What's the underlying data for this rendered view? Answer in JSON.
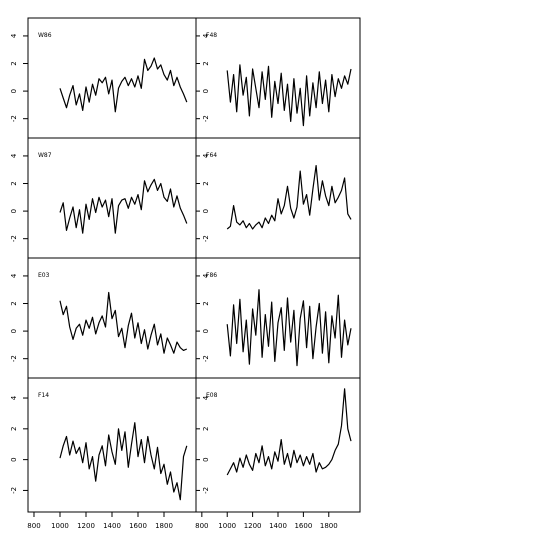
{
  "chart_data": [
    {
      "type": "line",
      "title": "W86",
      "color": "#000000",
      "xlim": [
        754,
        2046
      ],
      "ylim": [
        -3.4,
        5.3
      ],
      "yticks": [
        -2,
        0,
        2,
        4
      ],
      "x": [
        1000,
        1025,
        1050,
        1075,
        1100,
        1125,
        1150,
        1175,
        1200,
        1225,
        1250,
        1275,
        1300,
        1325,
        1350,
        1375,
        1400,
        1425,
        1450,
        1475,
        1500,
        1525,
        1550,
        1575,
        1600,
        1625,
        1650,
        1675,
        1700,
        1725,
        1750,
        1775,
        1800,
        1825,
        1850,
        1875,
        1900,
        1925,
        1950,
        1975
      ],
      "values": [
        0.2,
        -0.5,
        -1.2,
        -0.3,
        0.4,
        -1.0,
        -0.2,
        -1.4,
        0.3,
        -0.8,
        0.5,
        -0.3,
        0.9,
        0.6,
        1.0,
        -0.2,
        0.8,
        -1.5,
        0.2,
        0.7,
        1.0,
        0.4,
        0.9,
        0.3,
        1.1,
        0.2,
        2.3,
        1.5,
        1.8,
        2.4,
        1.6,
        1.9,
        1.2,
        0.8,
        1.5,
        0.4,
        1.0,
        0.3,
        -0.2,
        -0.8
      ]
    },
    {
      "type": "line",
      "title": "F48",
      "color": "#000000",
      "xlim": [
        754,
        2046
      ],
      "ylim": [
        -3.4,
        5.3
      ],
      "yticks": [
        -2,
        0,
        2,
        4
      ],
      "x": [
        1000,
        1025,
        1050,
        1075,
        1100,
        1125,
        1150,
        1175,
        1200,
        1225,
        1250,
        1275,
        1300,
        1325,
        1350,
        1375,
        1400,
        1425,
        1450,
        1475,
        1500,
        1525,
        1550,
        1575,
        1600,
        1625,
        1650,
        1675,
        1700,
        1725,
        1750,
        1775,
        1800,
        1825,
        1850,
        1875,
        1900,
        1925,
        1950,
        1975
      ],
      "values": [
        1.5,
        -0.8,
        1.2,
        -1.5,
        1.9,
        -0.3,
        1.0,
        -1.8,
        1.6,
        0.2,
        -1.2,
        1.4,
        -0.6,
        1.8,
        -1.9,
        0.7,
        -0.9,
        1.3,
        -1.4,
        0.5,
        -2.2,
        0.9,
        -1.6,
        0.2,
        -2.5,
        1.1,
        -1.8,
        0.6,
        -1.2,
        1.4,
        -0.9,
        0.8,
        -1.5,
        1.2,
        -0.4,
        0.9,
        0.2,
        1.1,
        0.5,
        1.6
      ]
    },
    {
      "type": "line",
      "title": "W87",
      "color": "#000000",
      "xlim": [
        754,
        2046
      ],
      "ylim": [
        -3.4,
        5.3
      ],
      "yticks": [
        -2,
        0,
        2,
        4
      ],
      "x": [
        1000,
        1025,
        1050,
        1075,
        1100,
        1125,
        1150,
        1175,
        1200,
        1225,
        1250,
        1275,
        1300,
        1325,
        1350,
        1375,
        1400,
        1425,
        1450,
        1475,
        1500,
        1525,
        1550,
        1575,
        1600,
        1625,
        1650,
        1675,
        1700,
        1725,
        1750,
        1775,
        1800,
        1825,
        1850,
        1875,
        1900,
        1925,
        1950,
        1975
      ],
      "values": [
        -0.1,
        0.6,
        -1.4,
        -0.5,
        0.3,
        -1.2,
        0.1,
        -1.6,
        0.5,
        -0.6,
        0.9,
        -0.1,
        1.0,
        0.3,
        0.8,
        -0.4,
        0.9,
        -1.6,
        0.4,
        0.8,
        0.9,
        0.2,
        1.0,
        0.5,
        1.2,
        0.1,
        2.2,
        1.4,
        1.9,
        2.3,
        1.5,
        2.0,
        1.0,
        0.7,
        1.6,
        0.3,
        1.1,
        0.2,
        -0.3,
        -0.9
      ]
    },
    {
      "type": "line",
      "title": "F64",
      "color": "#000000",
      "xlim": [
        754,
        2046
      ],
      "ylim": [
        -3.4,
        5.3
      ],
      "yticks": [
        -2,
        0,
        2,
        4
      ],
      "x": [
        1000,
        1025,
        1050,
        1075,
        1100,
        1125,
        1150,
        1175,
        1200,
        1225,
        1250,
        1275,
        1300,
        1325,
        1350,
        1375,
        1400,
        1425,
        1450,
        1475,
        1500,
        1525,
        1550,
        1575,
        1600,
        1625,
        1650,
        1675,
        1700,
        1725,
        1750,
        1775,
        1800,
        1825,
        1850,
        1875,
        1900,
        1925,
        1950,
        1975
      ],
      "values": [
        -1.3,
        -1.1,
        0.4,
        -0.8,
        -1.0,
        -0.7,
        -1.2,
        -0.9,
        -1.3,
        -1.0,
        -0.8,
        -1.2,
        -0.5,
        -0.9,
        -0.3,
        -0.7,
        0.9,
        -0.2,
        0.4,
        1.8,
        0.2,
        -0.5,
        0.3,
        2.9,
        0.5,
        1.2,
        -0.3,
        1.6,
        3.3,
        0.8,
        2.2,
        1.1,
        0.4,
        1.8,
        0.6,
        1.0,
        1.5,
        2.4,
        -0.2,
        -0.6
      ]
    },
    {
      "type": "line",
      "title": "E03",
      "color": "#000000",
      "xlim": [
        754,
        2046
      ],
      "ylim": [
        -3.4,
        5.3
      ],
      "yticks": [
        -2,
        0,
        2,
        4
      ],
      "x": [
        1000,
        1025,
        1050,
        1075,
        1100,
        1125,
        1150,
        1175,
        1200,
        1225,
        1250,
        1275,
        1300,
        1325,
        1350,
        1375,
        1400,
        1425,
        1450,
        1475,
        1500,
        1525,
        1550,
        1575,
        1600,
        1625,
        1650,
        1675,
        1700,
        1725,
        1750,
        1775,
        1800,
        1825,
        1850,
        1875,
        1900,
        1925,
        1950,
        1975
      ],
      "values": [
        2.2,
        1.2,
        1.8,
        0.3,
        -0.6,
        0.2,
        0.5,
        -0.3,
        0.8,
        0.2,
        1.0,
        -0.2,
        0.6,
        1.1,
        0.3,
        2.8,
        0.9,
        1.5,
        -0.4,
        0.2,
        -1.2,
        0.4,
        1.3,
        -0.5,
        0.6,
        -0.9,
        0.1,
        -1.3,
        -0.3,
        0.5,
        -1.0,
        -0.2,
        -1.6,
        -0.5,
        -1.0,
        -1.6,
        -0.8,
        -1.2,
        -1.4,
        -1.3
      ]
    },
    {
      "type": "line",
      "title": "F86",
      "color": "#000000",
      "xlim": [
        754,
        2046
      ],
      "ylim": [
        -3.4,
        5.3
      ],
      "yticks": [
        -2,
        0,
        2,
        4
      ],
      "x": [
        1000,
        1025,
        1050,
        1075,
        1100,
        1125,
        1150,
        1175,
        1200,
        1225,
        1250,
        1275,
        1300,
        1325,
        1350,
        1375,
        1400,
        1425,
        1450,
        1475,
        1500,
        1525,
        1550,
        1575,
        1600,
        1625,
        1650,
        1675,
        1700,
        1725,
        1750,
        1775,
        1800,
        1825,
        1850,
        1875,
        1900,
        1925,
        1950,
        1975
      ],
      "values": [
        0.5,
        -1.8,
        1.9,
        -0.9,
        2.3,
        -1.5,
        0.8,
        -2.4,
        1.6,
        -0.3,
        3.0,
        -1.9,
        1.2,
        -1.1,
        2.1,
        -2.2,
        0.6,
        1.7,
        -1.4,
        2.4,
        -0.8,
        1.5,
        -2.5,
        0.9,
        2.2,
        -1.2,
        1.8,
        -2.0,
        0.3,
        2.0,
        -1.6,
        1.4,
        -2.3,
        1.1,
        -0.5,
        2.6,
        -1.9,
        0.8,
        -1.0,
        0.2
      ]
    },
    {
      "type": "line",
      "title": "F14",
      "color": "#000000",
      "xlim": [
        754,
        2046
      ],
      "ylim": [
        -3.4,
        5.3
      ],
      "yticks": [
        -2,
        0,
        2,
        4
      ],
      "xticks": [
        800,
        1000,
        1200,
        1400,
        1600,
        1800
      ],
      "x": [
        1000,
        1025,
        1050,
        1075,
        1100,
        1125,
        1150,
        1175,
        1200,
        1225,
        1250,
        1275,
        1300,
        1325,
        1350,
        1375,
        1400,
        1425,
        1450,
        1475,
        1500,
        1525,
        1550,
        1575,
        1600,
        1625,
        1650,
        1675,
        1700,
        1725,
        1750,
        1775,
        1800,
        1825,
        1850,
        1875,
        1900,
        1925,
        1950,
        1975
      ],
      "values": [
        0.1,
        0.9,
        1.5,
        0.3,
        1.2,
        0.4,
        0.8,
        -0.2,
        1.1,
        -0.6,
        0.2,
        -1.4,
        0.3,
        0.9,
        -0.4,
        1.6,
        0.5,
        -0.3,
        2.0,
        0.6,
        1.8,
        -0.5,
        1.0,
        2.4,
        0.2,
        1.3,
        -0.2,
        1.5,
        0.3,
        -0.6,
        0.8,
        -0.9,
        -0.3,
        -1.6,
        -0.8,
        -2.1,
        -1.5,
        -2.6,
        0.2,
        0.9
      ]
    },
    {
      "type": "line",
      "title": "E08",
      "color": "#000000",
      "xlim": [
        754,
        2046
      ],
      "ylim": [
        -3.4,
        5.3
      ],
      "yticks": [
        -2,
        0,
        2,
        4
      ],
      "xticks": [
        800,
        1000,
        1200,
        1400,
        1600,
        1800
      ],
      "x": [
        1000,
        1025,
        1050,
        1075,
        1100,
        1125,
        1150,
        1175,
        1200,
        1225,
        1250,
        1275,
        1300,
        1325,
        1350,
        1375,
        1400,
        1425,
        1450,
        1475,
        1500,
        1525,
        1550,
        1575,
        1600,
        1625,
        1650,
        1675,
        1700,
        1725,
        1750,
        1775,
        1800,
        1825,
        1850,
        1875,
        1900,
        1925,
        1950,
        1975
      ],
      "values": [
        -1.0,
        -0.6,
        -0.2,
        -0.8,
        0.1,
        -0.5,
        0.3,
        -0.3,
        -0.7,
        0.4,
        -0.2,
        0.9,
        -0.4,
        0.2,
        -0.6,
        0.5,
        -0.1,
        1.3,
        -0.3,
        0.4,
        -0.5,
        0.6,
        -0.2,
        0.3,
        -0.4,
        0.2,
        -0.3,
        0.4,
        -0.8,
        -0.2,
        -0.6,
        -0.5,
        -0.3,
        0.0,
        0.6,
        1.0,
        2.2,
        4.6,
        2.0,
        1.2
      ]
    }
  ]
}
